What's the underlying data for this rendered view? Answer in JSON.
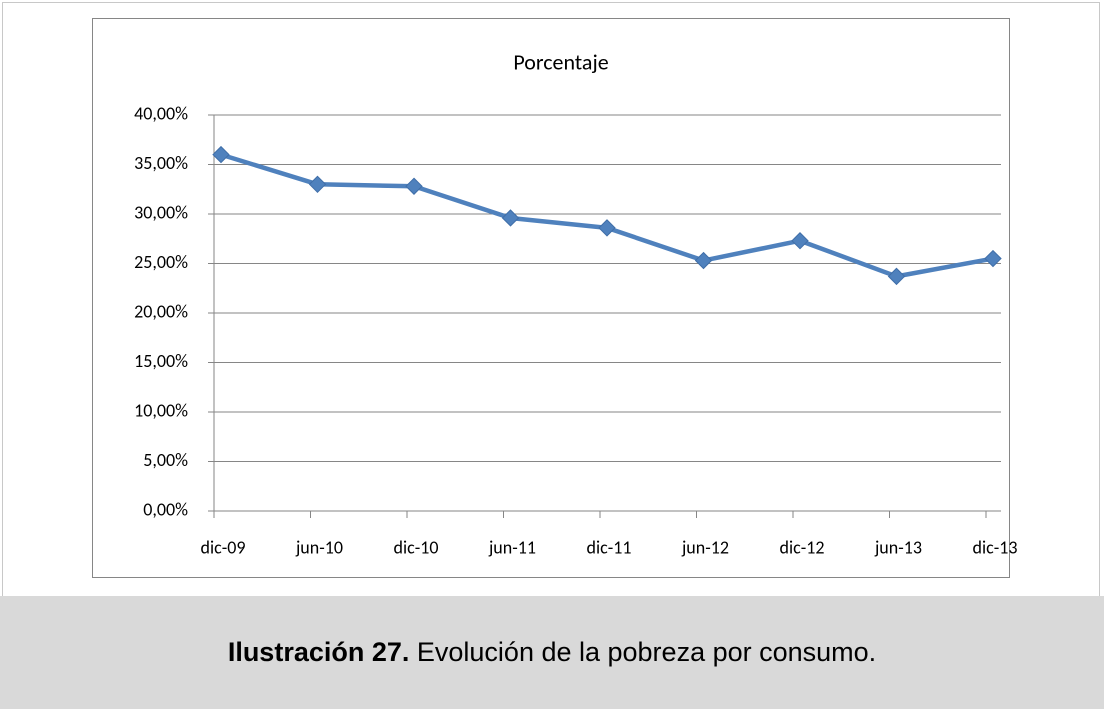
{
  "chart_data": {
    "type": "line",
    "title": "Porcentaje",
    "categories": [
      "dic-09",
      "jun-10",
      "dic-10",
      "jun-11",
      "dic-11",
      "jun-12",
      "dic-12",
      "jun-13",
      "dic-13"
    ],
    "series": [
      {
        "color": "#4f81bd",
        "values": [
          36.0,
          33.0,
          32.8,
          29.6,
          28.6,
          25.3,
          27.3,
          23.7,
          25.5
        ]
      }
    ],
    "ylim": [
      0,
      40
    ],
    "yticks": [
      {
        "value": 0,
        "label": "0,00%"
      },
      {
        "value": 5,
        "label": "5,00%"
      },
      {
        "value": 10,
        "label": "10,00%"
      },
      {
        "value": 15,
        "label": "15,00%"
      },
      {
        "value": 20,
        "label": "20,00%"
      },
      {
        "value": 25,
        "label": "25,00%"
      },
      {
        "value": 30,
        "label": "30,00%"
      },
      {
        "value": 35,
        "label": "35,00%"
      },
      {
        "value": 40,
        "label": "40,00%"
      }
    ],
    "grid": true
  },
  "caption": {
    "label": "Ilustración 27.",
    "text": " Evolución de la pobreza por consumo."
  }
}
